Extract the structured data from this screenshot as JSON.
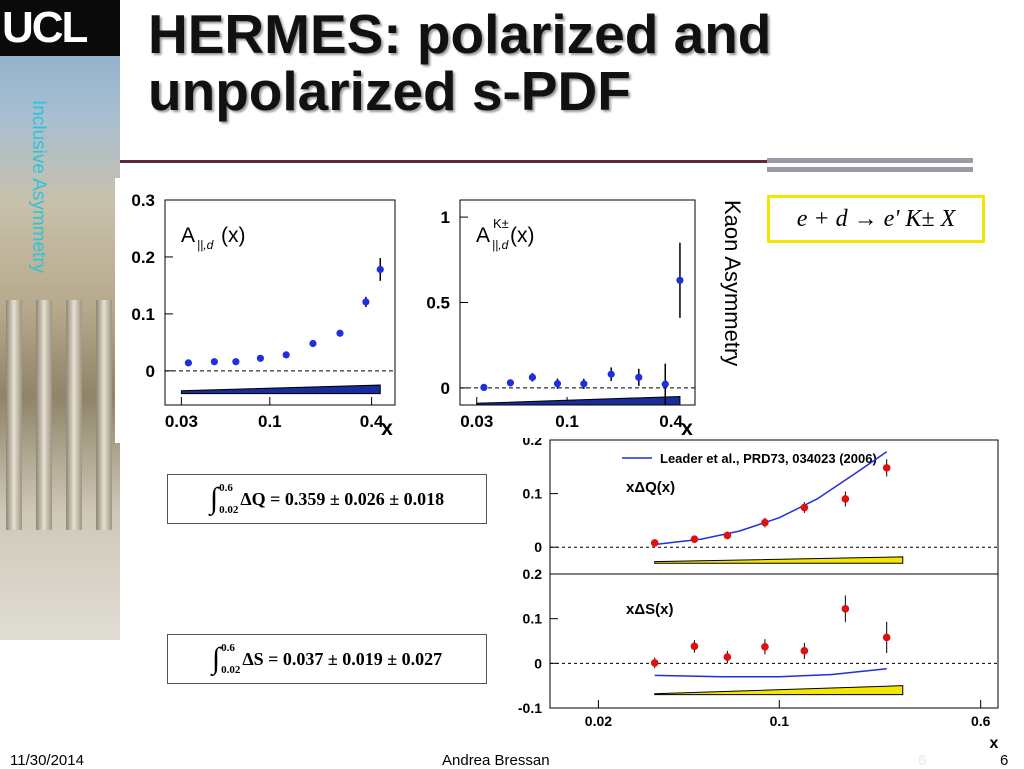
{
  "slide": {
    "title": "HERMES: polarized and unpolarized s-PDF",
    "logo_text": "UCL",
    "vertical_left_text": "Inclusive Asymmetry",
    "vertical_right_text": "Kaon Asymmetry",
    "reaction": "e + d → e' K± X",
    "integral_q": {
      "lower": "0.02",
      "upper": "0.6",
      "expr": "ΔQ = 0.359 ± 0.026 ± 0.018"
    },
    "integral_s": {
      "lower": "0.02",
      "upper": "0.6",
      "expr": "ΔS = 0.037 ± 0.019 ± 0.027"
    },
    "footer": {
      "date": "11/30/2014",
      "author": "Andrea Bressan",
      "page": "6",
      "ghost_page": "6"
    },
    "colors": {
      "accent_cyan": "#2ec4d8",
      "marker_blue": "#1f2fe0",
      "marker_red": "#e01010",
      "band_yellow": "#f3e600",
      "title_rule": "#5b2a3f"
    }
  },
  "chart_data": [
    {
      "type": "scatter",
      "id": "A_par_d",
      "title": "A",
      "title_sub": "||,d",
      "title_tail": "(x)",
      "xlabel": "x",
      "xscale": "log",
      "xlim": [
        0.024,
        0.55
      ],
      "ylim": [
        -0.06,
        0.3
      ],
      "xticks": [
        0.03,
        0.1,
        0.4
      ],
      "xtick_labels": [
        "0.03",
        "0.1",
        "0.4"
      ],
      "yticks": [
        0,
        0.1,
        0.2,
        0.3
      ],
      "ytick_labels": [
        "0",
        "0.1",
        "0.2",
        "0.3"
      ],
      "series": [
        {
          "x": [
            0.033,
            0.047,
            0.063,
            0.088,
            0.125,
            0.18,
            0.26,
            0.37,
            0.45
          ],
          "y": [
            0.014,
            0.016,
            0.016,
            0.022,
            0.028,
            0.048,
            0.066,
            0.121,
            0.178
          ],
          "err": [
            0.002,
            0.002,
            0.002,
            0.002,
            0.002,
            0.003,
            0.004,
            0.009,
            0.02
          ]
        }
      ],
      "syst_band": {
        "x": [
          0.03,
          0.45
        ],
        "low": [
          -0.04,
          -0.04
        ],
        "high": [
          -0.035,
          -0.025
        ]
      }
    },
    {
      "type": "scatter",
      "id": "A_K_par_d",
      "title": "A",
      "title_sup": "K±",
      "title_sub": "||,d",
      "title_tail": "(x)",
      "xlabel": "x",
      "xscale": "log",
      "xlim": [
        0.024,
        0.55
      ],
      "ylim": [
        -0.1,
        1.1
      ],
      "xticks": [
        0.03,
        0.1,
        0.4
      ],
      "xtick_labels": [
        "0.03",
        "0.1",
        "0.4"
      ],
      "yticks": [
        0,
        0.5,
        1
      ],
      "ytick_labels": [
        "0",
        "0.5",
        "1"
      ],
      "series": [
        {
          "x": [
            0.033,
            0.047,
            0.063,
            0.088,
            0.125,
            0.18,
            0.26,
            0.37,
            0.45
          ],
          "y": [
            0.003,
            0.03,
            0.062,
            0.025,
            0.024,
            0.08,
            0.062,
            0.022,
            0.63
          ],
          "err": [
            0.02,
            0.02,
            0.025,
            0.03,
            0.03,
            0.04,
            0.05,
            0.12,
            0.22
          ]
        }
      ],
      "syst_band": {
        "x": [
          0.03,
          0.45
        ],
        "low": [
          -0.1,
          -0.1
        ],
        "high": [
          -0.09,
          -0.05
        ]
      }
    },
    {
      "type": "scatter",
      "id": "xDeltaQ",
      "label": "xΔQ(x)",
      "xscale": "log",
      "xlim": [
        0.013,
        0.7
      ],
      "ylim": [
        -0.05,
        0.2
      ],
      "yticks": [
        0,
        0.1,
        0.2
      ],
      "ytick_labels": [
        "0",
        "0.1",
        "0.2"
      ],
      "legend": "Leader et al., PRD73, 034023 (2006)",
      "series": [
        {
          "x": [
            0.033,
            0.047,
            0.063,
            0.088,
            0.125,
            0.18,
            0.26
          ],
          "y": [
            0.008,
            0.015,
            0.022,
            0.046,
            0.074,
            0.09,
            0.148
          ],
          "err": [
            0.006,
            0.006,
            0.007,
            0.009,
            0.01,
            0.014,
            0.016
          ]
        }
      ],
      "theory_curve": {
        "x": [
          0.033,
          0.05,
          0.07,
          0.1,
          0.14,
          0.2,
          0.26
        ],
        "y": [
          0.005,
          0.015,
          0.03,
          0.055,
          0.09,
          0.14,
          0.178
        ]
      },
      "syst_band": {
        "x": [
          0.033,
          0.3
        ],
        "low": [
          -0.03,
          -0.03
        ],
        "high": [
          -0.027,
          -0.018
        ]
      }
    },
    {
      "type": "scatter",
      "id": "xDeltaS",
      "label": "xΔS(x)",
      "xscale": "log",
      "xlim": [
        0.013,
        0.7
      ],
      "ylim": [
        -0.1,
        0.2
      ],
      "xticks": [
        0.02,
        0.1,
        0.6
      ],
      "xtick_labels": [
        "0.02",
        "0.1",
        "0.6"
      ],
      "yticks": [
        -0.1,
        0,
        0.1,
        0.2
      ],
      "ytick_labels": [
        "-0.1",
        "0",
        "0.1",
        "0.2"
      ],
      "xlabel": "x",
      "series": [
        {
          "x": [
            0.033,
            0.047,
            0.063,
            0.088,
            0.125,
            0.18,
            0.26
          ],
          "y": [
            0.001,
            0.038,
            0.014,
            0.037,
            0.028,
            0.122,
            0.058
          ],
          "err": [
            0.012,
            0.014,
            0.014,
            0.017,
            0.018,
            0.03,
            0.035
          ]
        }
      ],
      "theory_curve": {
        "x": [
          0.033,
          0.06,
          0.1,
          0.16,
          0.26
        ],
        "y": [
          -0.027,
          -0.03,
          -0.03,
          -0.025,
          -0.012
        ]
      },
      "syst_band": {
        "x": [
          0.033,
          0.3
        ],
        "low": [
          -0.07,
          -0.07
        ],
        "high": [
          -0.068,
          -0.05
        ]
      }
    }
  ]
}
